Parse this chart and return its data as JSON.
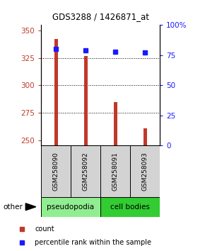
{
  "title": "GDS3288 / 1426871_at",
  "samples": [
    "GSM258090",
    "GSM258092",
    "GSM258091",
    "GSM258093"
  ],
  "count_values": [
    342,
    327,
    285,
    261
  ],
  "percentile_values": [
    80,
    79,
    78,
    77
  ],
  "ylim_left": [
    245,
    355
  ],
  "ylim_right": [
    0,
    100
  ],
  "yticks_left": [
    250,
    275,
    300,
    325,
    350
  ],
  "yticks_right": [
    0,
    25,
    50,
    75,
    100
  ],
  "ytick_labels_right": [
    "0",
    "25",
    "50",
    "75",
    "100%"
  ],
  "grid_lines": [
    275,
    300,
    325
  ],
  "bar_color": "#C0392B",
  "dot_color": "#1a1aff",
  "groups": [
    {
      "label": "pseudopodia",
      "color": "#90EE90"
    },
    {
      "label": "cell bodies",
      "color": "#32CD32"
    }
  ],
  "other_label": "other",
  "left_label_color": "#C0392B",
  "right_label_color": "#1a1aff",
  "bar_width": 0.12,
  "base_value": 245,
  "fig_width": 2.9,
  "fig_height": 3.54,
  "dpi": 100
}
